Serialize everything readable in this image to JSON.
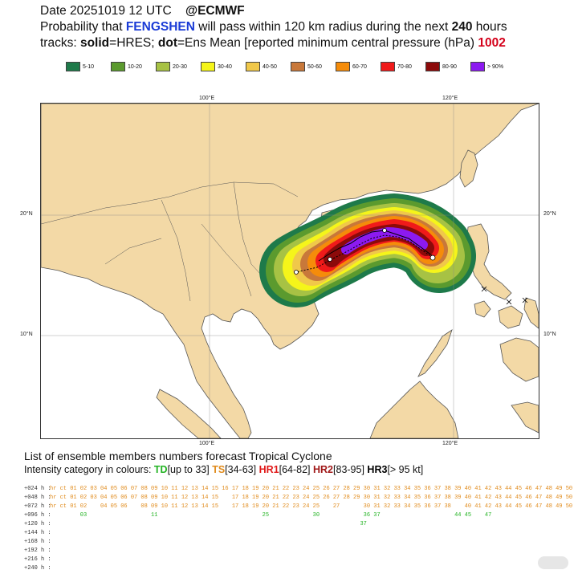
{
  "header": {
    "line1_date": "Date 20251019 12 UTC",
    "line1_source": "@ECMWF",
    "line2_pre": "Probability that",
    "storm": "FENGSHEN",
    "line2_mid": "will pass within 120 km radius during the next",
    "hours": "240",
    "line2_post": "hours",
    "line3_tracks": "tracks:",
    "solid": "solid",
    "solid_eq": "=HRES;",
    "dot": "dot",
    "dot_eq": "=Ens Mean [reported minimum central pressure (hPa)",
    "pressure": "1002"
  },
  "legend": [
    {
      "label": "5-10",
      "color": "#1e7a4a"
    },
    {
      "label": "10-20",
      "color": "#5b9a2e"
    },
    {
      "label": "20-30",
      "color": "#a7c244"
    },
    {
      "label": "30-40",
      "color": "#f5f51a"
    },
    {
      "label": "40-50",
      "color": "#f0c84a"
    },
    {
      "label": "50-60",
      "color": "#c8783a"
    },
    {
      "label": "60-70",
      "color": "#f58c0a"
    },
    {
      "label": "70-80",
      "color": "#f01a1a"
    },
    {
      "label": "80-90",
      "color": "#8c0a0a"
    },
    {
      "label": "> 90%",
      "color": "#8c1af0"
    }
  ],
  "map": {
    "lon_labels": [
      "100°E",
      "120°E"
    ],
    "lat_labels": [
      "20°N",
      "10°N"
    ],
    "ocean_color": "#ffffff",
    "land_color": "#f3d9a6"
  },
  "list": {
    "title": "List of ensemble members numbers forecast Tropical Cyclone",
    "sub_pre": "Intensity category in colours:",
    "td": "TD",
    "td_range": "[up to 33]",
    "ts": "TS",
    "ts_range": "[34-63]",
    "hr1": "HR1",
    "hr1_range": "[64-82]",
    "hr2": "HR2",
    "hr2_range": "[83-95]",
    "hr3": "HR3",
    "hr3_range": "[> 95 kt]",
    "rows": [
      {
        "label": "+024 h :",
        "text": "hr ct 01 02 03 04 05 06 07 08 09 10 11 12 13 14 15 16 17 18 19 20 21 22 23 24 25 26 27 28 29 30 31 32 33 34 35 36 37 38 39 40 41 42 43 44 45 46 47 48 49 50"
      },
      {
        "label": "+048 h :",
        "text": "hr ct 01 02 03 04 05 06 07 08 09 10 11 12 13 14 15    17 18 19 20 21 22 23 24 25 26 27 28 29 30 31 32 33 34 35 36 37 38 39 40 41 42 43 44 45 46 47 48 49 50"
      },
      {
        "label": "+072 h :",
        "text": "hr ct 01 02    04 05 06    08 09 10 11 12 13 14 15    17 18 19 20 21 22 23 24 25    27       30 31 32 33 34 35 36 37 38    40 41 42 43 44 45 46 47 48 49 50"
      },
      {
        "label": "+096 h :",
        "text": "         03                   11                               25             30             36 37                      44 45    47"
      },
      {
        "label": "+120 h :",
        "text": "                                                                                            37"
      },
      {
        "label": "+144 h :",
        "text": ""
      },
      {
        "label": "+168 h :",
        "text": ""
      },
      {
        "label": "+192 h :",
        "text": ""
      },
      {
        "label": "+216 h :",
        "text": ""
      },
      {
        "label": "+240 h :",
        "text": ""
      }
    ]
  }
}
